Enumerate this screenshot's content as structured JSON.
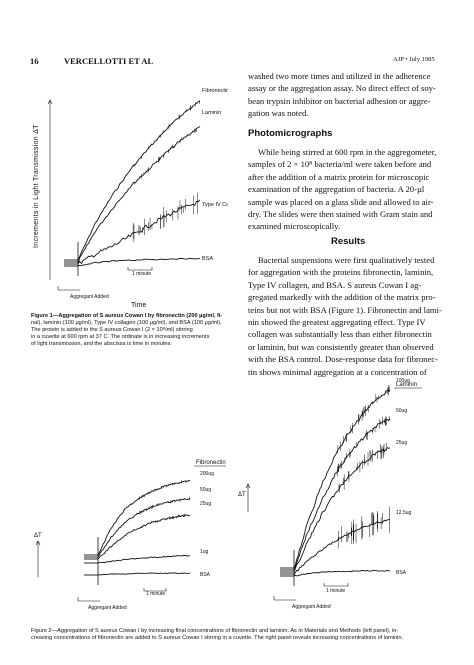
{
  "header": {
    "page_number": "16",
    "authors": "VERCELLOTTI ET AL",
    "journal": "AJP • July 1985"
  },
  "right_column": {
    "para1_lines": [
      "washed two more times and utilized in the adherence",
      "assay or the aggregation assay. No direct effect of soy-",
      "bean trypsin inhibitor on bacterial adhesion or aggre-",
      "gation was noted."
    ],
    "section_photomicrographs": "Photomicrographs",
    "para2_lines": [
      "While being stirred at 600 rpm in the aggregometer,",
      "samples of 2 × 10⁸ bacteria/ml were taken before and",
      "after the addition of a matrix protein for microscopic",
      "examination of the aggregation of bacteria. A 20-µl",
      "sample was placed on a glass slide and allowed to air-",
      "dry. The slides were then stained with Gram stain and",
      "examined microscopically."
    ],
    "section_results": "Results",
    "para3_lines": [
      "Bacterial suspensions were first qualitatively tested",
      "for aggregation with the proteins fibronectin, laminin,",
      "Type IV collagen, and BSA. S aureus Cowan I ag-",
      "gregated markedly with the addition of the matrix pro-",
      "teins but not with BSA (Figure 1). Fibronectin and lami-",
      "nin showed the greatest aggregating effect. Type IV",
      "collagen was substantially less than either fibronectin",
      "or laminin, but was consistently greater than observed",
      "with the BSA control. Dose-response data for fibronec-",
      "tin shows minimal aggregation at a concentration of"
    ]
  },
  "figure1": {
    "ylabel": "Increments in Light Transmission ΔT",
    "xlabel": "Time",
    "scale_label": "1 minute",
    "agg_label": "Aggregant Added",
    "caption_lines": [
      "Figure 1—Aggregation of S aureus Cowan I by fibronectin (200 µg/ml, fi-",
      "nal), laminin (100 µg/ml), Type IV collagen (100 µg/ml), and BSA (100 µg/ml).",
      "The protein is added to the S aureus Cowan I (2 × 10⁸/ml) stirring",
      "in a cuvette at 600 rpm at 37 C. The ordinate is in increasing increments",
      "of light transmission, and the abscissa is time in minutes."
    ]
  },
  "figure2_left": {
    "panel_title": "Fibronectin",
    "ylabel": "ΔT",
    "scale_label": "1 minute",
    "agg_label": "Aggregant Added"
  },
  "figure2_right": {
    "panel_title": "Laminin",
    "ylabel": "ΔT",
    "scale_label": "1 minute",
    "agg_label": "Aggregant Added"
  },
  "figure2_caption_lines": [
    "Figure 2—Aggregation of S aureus Cowan I by increasing final concentrations of fibronectin and laminin. As in Materials and Methods (left panel), in-",
    "creasing concentrations of fibronectin are added to S aureus Cowan I stirring in a cuvette. The right panel reveals increasing concentrations of laminin."
  ],
  "chart_data": [
    {
      "type": "line",
      "title": "",
      "xlabel": "Time",
      "ylabel": "Increments in Light Transmission ΔT",
      "x": [
        0,
        1,
        2,
        3,
        4,
        5,
        6,
        7
      ],
      "series": [
        {
          "name": "Fibronectin",
          "values": [
            0,
            45,
            80,
            110,
            135,
            158,
            178,
            194
          ]
        },
        {
          "name": "Laminin",
          "values": [
            0,
            38,
            66,
            92,
            112,
            132,
            150,
            165
          ]
        },
        {
          "name": "Type IV Collagen",
          "values": [
            0,
            12,
            22,
            34,
            46,
            58,
            68,
            76
          ]
        },
        {
          "name": "BSA",
          "values": [
            0,
            4,
            6,
            7,
            8,
            8,
            9,
            9
          ]
        }
      ]
    },
    {
      "type": "line",
      "title": "Fibronectin",
      "ylabel": "ΔT",
      "x": [
        0,
        1,
        2,
        3,
        4,
        5,
        6,
        7
      ],
      "series": [
        {
          "name": "200ug",
          "values": [
            0,
            30,
            50,
            62,
            70,
            76,
            80,
            83
          ]
        },
        {
          "name": "50ug",
          "values": [
            0,
            22,
            38,
            48,
            55,
            60,
            63,
            65
          ]
        },
        {
          "name": "25ug",
          "values": [
            0,
            14,
            26,
            34,
            40,
            44,
            47,
            49
          ]
        },
        {
          "name": "1ug",
          "values": [
            0,
            2,
            4,
            5,
            6,
            7,
            8,
            8
          ]
        },
        {
          "name": "BSA",
          "values": [
            0,
            1,
            1,
            2,
            2,
            2,
            2,
            2
          ]
        }
      ]
    },
    {
      "type": "line",
      "title": "Laminin",
      "ylabel": "ΔT",
      "x": [
        0,
        1,
        2,
        3,
        4,
        5,
        6,
        7
      ],
      "series": [
        {
          "name": "100ug",
          "values": [
            0,
            60,
            110,
            150,
            180,
            205,
            225,
            238
          ]
        },
        {
          "name": "50ug",
          "values": [
            0,
            50,
            92,
            128,
            155,
            175,
            192,
            202
          ]
        },
        {
          "name": "25ug",
          "values": [
            0,
            40,
            76,
            105,
            128,
            145,
            158,
            166
          ]
        },
        {
          "name": "12.5ug",
          "values": [
            0,
            18,
            32,
            44,
            54,
            62,
            68,
            72
          ]
        },
        {
          "name": "BSA",
          "values": [
            0,
            3,
            5,
            6,
            6,
            7,
            7,
            7
          ]
        }
      ]
    }
  ]
}
